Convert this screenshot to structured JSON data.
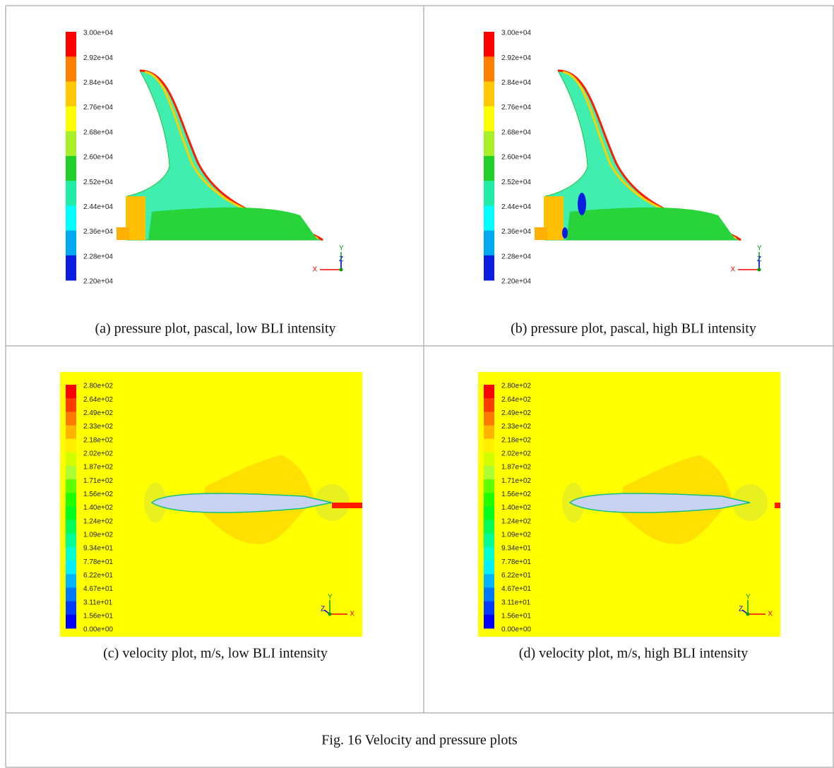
{
  "panels": [
    {
      "colorbar_labels": [
        "3.00e+04",
        "2.92e+04",
        "2.84e+04",
        "2.76e+04",
        "2.68e+04",
        "2.60e+04",
        "2.52e+04",
        "2.44e+04",
        "2.36e+04",
        "2.28e+04",
        "2.20e+04"
      ],
      "axes": [
        "X",
        "Y",
        "Z"
      ],
      "caption": "(a) pressure plot, pascal, low BLI intensity"
    },
    {
      "colorbar_labels": [
        "3.00e+04",
        "2.92e+04",
        "2.84e+04",
        "2.76e+04",
        "2.68e+04",
        "2.60e+04",
        "2.52e+04",
        "2.44e+04",
        "2.36e+04",
        "2.28e+04",
        "2.20e+04"
      ],
      "axes": [
        "X",
        "Y",
        "Z"
      ],
      "caption": "(b) pressure plot, pascal, high BLI intensity"
    },
    {
      "colorbar_labels": [
        "2.80e+02",
        "2.64e+02",
        "2.49e+02",
        "2.33e+02",
        "2.18e+02",
        "2.02e+02",
        "1.87e+02",
        "1.71e+02",
        "1.56e+02",
        "1.40e+02",
        "1.24e+02",
        "1.09e+02",
        "9.34e+01",
        "7.78e+01",
        "6.22e+01",
        "4.67e+01",
        "3.11e+01",
        "1.56e+01",
        "0.00e+00"
      ],
      "axes": [
        "X",
        "Y",
        "Z"
      ],
      "caption": "(c) velocity plot, m/s, low BLI intensity"
    },
    {
      "colorbar_labels": [
        "2.80e+02",
        "2.64e+02",
        "2.49e+02",
        "2.33e+02",
        "2.18e+02",
        "2.02e+02",
        "1.87e+02",
        "1.71e+02",
        "1.56e+02",
        "1.40e+02",
        "1.24e+02",
        "1.09e+02",
        "9.34e+01",
        "7.78e+01",
        "6.22e+01",
        "4.67e+01",
        "3.11e+01",
        "1.56e+01",
        "0.00e+00"
      ],
      "axes": [
        "X",
        "Y",
        "Z"
      ],
      "caption": "(d) velocity plot, m/s, high BLI intensity"
    }
  ],
  "caption": "Fig. 16 Velocity and pressure plots"
}
